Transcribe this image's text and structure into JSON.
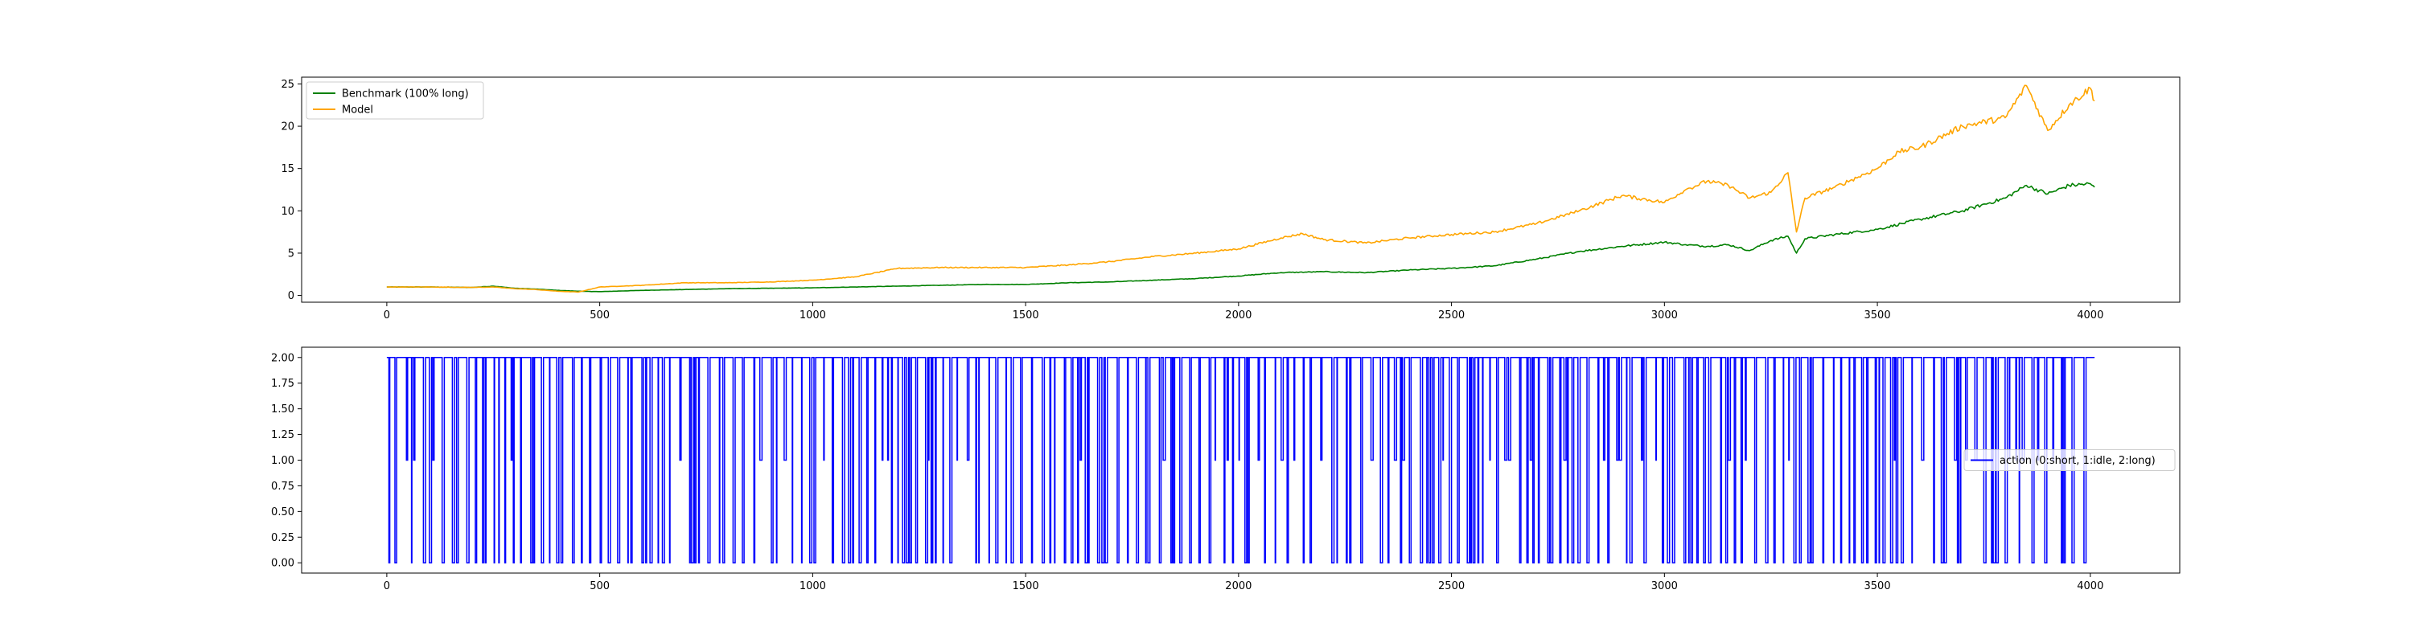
{
  "chart_data": [
    {
      "type": "line",
      "title": "",
      "xlabel": "",
      "ylabel": "",
      "xlim": [
        -200,
        4210
      ],
      "ylim": [
        -0.8,
        25.8
      ],
      "xticks": [
        0,
        500,
        1000,
        1500,
        2000,
        2500,
        3000,
        3500,
        4000
      ],
      "xtick_labels": [
        "0",
        "500",
        "1000",
        "1500",
        "2000",
        "2500",
        "3000",
        "3500",
        "4000"
      ],
      "yticks": [
        0,
        5,
        10,
        15,
        20,
        25
      ],
      "ytick_labels": [
        "0",
        "5",
        "10",
        "15",
        "20",
        "25"
      ],
      "grid": false,
      "legend_position": "top-left",
      "series": [
        {
          "name": "Benchmark (100% long)",
          "color": "#008000",
          "x": [
            0,
            100,
            200,
            250,
            300,
            350,
            400,
            450,
            500,
            600,
            700,
            800,
            900,
            1000,
            1100,
            1200,
            1300,
            1400,
            1500,
            1600,
            1700,
            1800,
            1900,
            2000,
            2100,
            2200,
            2300,
            2400,
            2500,
            2600,
            2700,
            2800,
            2900,
            3000,
            3050,
            3100,
            3150,
            3200,
            3250,
            3290,
            3310,
            3330,
            3400,
            3500,
            3600,
            3700,
            3800,
            3850,
            3900,
            3950,
            4000,
            4010
          ],
          "y": [
            1.0,
            1.0,
            0.95,
            1.1,
            0.85,
            0.75,
            0.6,
            0.5,
            0.45,
            0.6,
            0.7,
            0.8,
            0.85,
            0.9,
            1.0,
            1.1,
            1.2,
            1.3,
            1.3,
            1.5,
            1.6,
            1.8,
            2.0,
            2.3,
            2.7,
            2.8,
            2.7,
            3.0,
            3.2,
            3.5,
            4.3,
            5.2,
            5.8,
            6.3,
            6.0,
            5.8,
            6.0,
            5.3,
            6.5,
            7.0,
            5.0,
            6.7,
            7.2,
            7.8,
            9.0,
            10.0,
            11.5,
            13.0,
            12.0,
            13.0,
            13.2,
            12.8
          ]
        },
        {
          "name": "Model",
          "color": "#FFA500",
          "x": [
            0,
            100,
            200,
            250,
            300,
            350,
            400,
            450,
            500,
            600,
            700,
            800,
            900,
            1000,
            1100,
            1200,
            1300,
            1400,
            1500,
            1600,
            1700,
            1800,
            1900,
            2000,
            2100,
            2150,
            2200,
            2300,
            2400,
            2500,
            2600,
            2700,
            2800,
            2900,
            3000,
            3050,
            3100,
            3150,
            3200,
            3250,
            3290,
            3310,
            3330,
            3400,
            3500,
            3550,
            3600,
            3700,
            3800,
            3850,
            3900,
            3950,
            4000,
            4010
          ],
          "y": [
            1.0,
            1.0,
            0.95,
            1.0,
            0.8,
            0.7,
            0.5,
            0.4,
            1.0,
            1.2,
            1.5,
            1.5,
            1.6,
            1.8,
            2.2,
            3.2,
            3.3,
            3.3,
            3.3,
            3.6,
            4.0,
            4.6,
            5.0,
            5.5,
            6.8,
            7.3,
            6.6,
            6.2,
            6.8,
            7.2,
            7.5,
            8.5,
            10.0,
            11.8,
            11.0,
            12.5,
            13.5,
            13.0,
            11.5,
            12.2,
            14.5,
            7.5,
            11.5,
            12.8,
            15.0,
            17.0,
            17.5,
            20.0,
            21.0,
            24.8,
            19.5,
            22.5,
            24.5,
            23.0
          ]
        }
      ]
    },
    {
      "type": "line",
      "title": "",
      "xlabel": "",
      "ylabel": "",
      "xlim": [
        -200,
        4210
      ],
      "ylim": [
        -0.1,
        2.1
      ],
      "xticks": [
        0,
        500,
        1000,
        1500,
        2000,
        2500,
        3000,
        3500,
        4000
      ],
      "xtick_labels": [
        "0",
        "500",
        "1000",
        "1500",
        "2000",
        "2500",
        "3000",
        "3500",
        "4000"
      ],
      "yticks": [
        0.0,
        0.25,
        0.5,
        0.75,
        1.0,
        1.25,
        1.5,
        1.75,
        2.0
      ],
      "ytick_labels": [
        "0.00",
        "0.25",
        "0.50",
        "0.75",
        "1.00",
        "1.25",
        "1.50",
        "1.75",
        "2.00"
      ],
      "grid": false,
      "legend_position": "center-right",
      "series": [
        {
          "name": "action (0:short, 1:idle, 2:long)",
          "color": "#0000FF",
          "x_range": [
            0,
            4010
          ],
          "values": [
            0,
            1,
            2
          ],
          "description_values": "step series switching between 0, 1 and 2"
        }
      ]
    }
  ]
}
